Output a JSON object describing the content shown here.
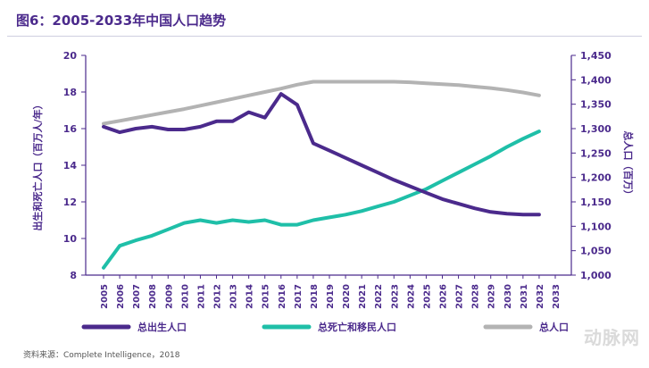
{
  "title": "图6：2005-2033年中国人口趋势",
  "source": "资料来源：Complete Intelligence，2018",
  "watermark": "动脉网",
  "colors": {
    "births": "#4b2a8c",
    "deaths_migration": "#1fbfa8",
    "total": "#b3b3b3",
    "text": "#4b2a8c"
  },
  "chart_data": {
    "type": "line",
    "x": [
      "2005",
      "2006",
      "2007",
      "2008",
      "2009",
      "2010",
      "2011",
      "2012",
      "2013",
      "2014",
      "2015",
      "2016",
      "2017",
      "2018",
      "2019",
      "2020",
      "2021",
      "2022",
      "2023",
      "2024",
      "2025",
      "2026",
      "2027",
      "2028",
      "2029",
      "2030",
      "2031",
      "2032",
      "2033"
    ],
    "xlabel": "",
    "ylabel": "出生和死亡人口（百万人/年）",
    "y2label": "总人口（百万）",
    "ylim": [
      8,
      20
    ],
    "y2lim": [
      1000,
      1450
    ],
    "yticks": [
      "8",
      "10",
      "12",
      "14",
      "16",
      "18",
      "20"
    ],
    "y2ticks": [
      "1,000",
      "1,050",
      "1,100",
      "1,150",
      "1,200",
      "1,250",
      "1,300",
      "1,350",
      "1,400",
      "1,450"
    ],
    "series": [
      {
        "name": "总出生人口",
        "axis": "left",
        "values": [
          16.1,
          15.8,
          16.0,
          16.1,
          15.95,
          15.95,
          16.1,
          16.4,
          16.4,
          16.9,
          16.6,
          17.9,
          17.3,
          15.2,
          14.8,
          14.4,
          14.0,
          13.6,
          13.2,
          12.85,
          12.5,
          12.15,
          11.9,
          11.65,
          11.45,
          11.35,
          11.3,
          11.3,
          null
        ],
        "color": "#4b2a8c"
      },
      {
        "name": "总死亡和移民人口",
        "axis": "left",
        "values": [
          8.4,
          9.6,
          9.9,
          10.15,
          10.5,
          10.85,
          11.0,
          10.85,
          11.0,
          10.9,
          11.0,
          10.75,
          10.75,
          11.0,
          11.15,
          11.3,
          11.5,
          11.75,
          12.0,
          12.35,
          12.7,
          13.15,
          13.6,
          14.05,
          14.5,
          15.0,
          15.45,
          15.85,
          null
        ],
        "color": "#1fbfa8"
      },
      {
        "name": "总人口",
        "axis": "right",
        "values": [
          1310,
          1316,
          1322,
          1328,
          1334,
          1340,
          1347,
          1354,
          1361,
          1368,
          1375,
          1382,
          1390,
          1396,
          1396,
          1396,
          1396,
          1396,
          1396,
          1395,
          1393,
          1391,
          1389,
          1386,
          1383,
          1379,
          1374,
          1368,
          null
        ],
        "color": "#b3b3b3"
      }
    ],
    "grid": false,
    "legend_position": "bottom"
  }
}
